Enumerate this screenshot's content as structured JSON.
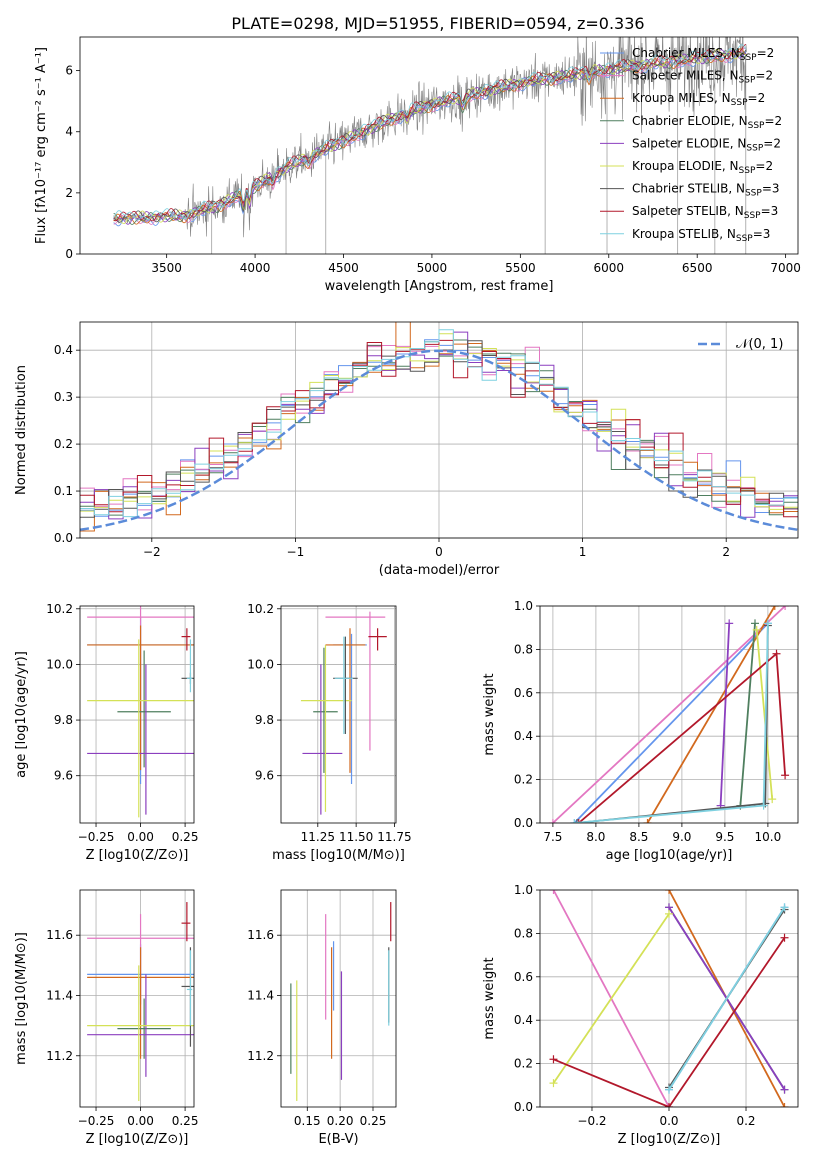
{
  "title": "PLATE=0298, MJD=51955, FIBERID=0594, z=0.336",
  "colors": {
    "chabrier_miles": "#6495ed",
    "salpeter_miles": "#e377c2",
    "kroupa_miles": "#d2691e",
    "chabrier_elodie": "#4f7f5f",
    "salpeter_elodie": "#8b3fbf",
    "kroupa_elodie": "#d4e157",
    "chabrier_stelib": "#555555",
    "salpeter_stelib": "#b2182b",
    "kroupa_stelib": "#7fd1e0",
    "data": "#808080",
    "normal": "#5b8bd9",
    "grid": "#b0b0b0"
  },
  "chart_data": [
    {
      "id": "spectrum",
      "type": "line",
      "xlabel": "wavelength [Angstrom, rest frame]",
      "ylabel": "Flux [fλ10⁻¹⁷ erg cm⁻² s⁻¹ A⁻¹]",
      "xlim": [
        3010,
        7070
      ],
      "ylim": [
        0,
        7.1
      ],
      "xticks": [
        3500,
        4000,
        4500,
        5000,
        5500,
        6000,
        6500,
        7000
      ],
      "yticks": [
        0,
        2,
        4,
        6
      ],
      "grid": false,
      "legend_position": "right",
      "data_range": [
        3200,
        6780
      ],
      "continuum": [
        [
          3200,
          1.15
        ],
        [
          3600,
          1.25
        ],
        [
          3800,
          1.6
        ],
        [
          4000,
          2.2
        ],
        [
          4200,
          2.9
        ],
        [
          4500,
          3.7
        ],
        [
          4800,
          4.5
        ],
        [
          5000,
          4.9
        ],
        [
          5500,
          5.6
        ],
        [
          6000,
          6.05
        ],
        [
          6500,
          6.4
        ],
        [
          6780,
          6.6
        ]
      ],
      "series": [
        {
          "name": "Chabrier MILES, N_SSP=2",
          "label_main": "Chabrier MILES, N",
          "label_sub": "SSP",
          "label_end": "=2",
          "color_key": "chabrier_miles"
        },
        {
          "name": "Salpeter MILES, N_SSP=2",
          "label_main": "Salpeter MILES, N",
          "label_sub": "SSP",
          "label_end": "=2",
          "color_key": "salpeter_miles"
        },
        {
          "name": "Kroupa MILES, N_SSP=2",
          "label_main": "Kroupa MILES, N",
          "label_sub": "SSP",
          "label_end": "=2",
          "color_key": "kroupa_miles"
        },
        {
          "name": "Chabrier ELODIE, N_SSP=2",
          "label_main": "Chabrier ELODIE, N",
          "label_sub": "SSP",
          "label_end": "=2",
          "color_key": "chabrier_elodie"
        },
        {
          "name": "Salpeter ELODIE, N_SSP=2",
          "label_main": "Salpeter ELODIE, N",
          "label_sub": "SSP",
          "label_end": "=2",
          "color_key": "salpeter_elodie"
        },
        {
          "name": "Kroupa ELODIE, N_SSP=2",
          "label_main": "Kroupa ELODIE, N",
          "label_sub": "SSP",
          "label_end": "=2",
          "color_key": "kroupa_elodie"
        },
        {
          "name": "Chabrier STELIB, N_SSP=3",
          "label_main": "Chabrier STELIB, N",
          "label_sub": "SSP",
          "label_end": "=3",
          "color_key": "chabrier_stelib"
        },
        {
          "name": "Salpeter STELIB, N_SSP=3",
          "label_main": "Salpeter STELIB, N",
          "label_sub": "SSP",
          "label_end": "=3",
          "color_key": "salpeter_stelib"
        },
        {
          "name": "Kroupa STELIB, N_SSP=3",
          "label_main": "Kroupa STELIB, N",
          "label_sub": "SSP",
          "label_end": "=3",
          "color_key": "kroupa_stelib"
        }
      ]
    },
    {
      "id": "residuals",
      "type": "histogram",
      "xlabel": "(data-model)/error",
      "ylabel": "Normed distribution",
      "xlim": [
        -2.5,
        2.5
      ],
      "ylim": [
        0,
        0.46
      ],
      "xticks": [
        -2,
        -1,
        0,
        1,
        2
      ],
      "yticks": [
        0.0,
        0.1,
        0.2,
        0.3,
        0.4
      ],
      "grid": true,
      "legend_position": "top-right",
      "legend": "𝒩(0, 1)",
      "bin_width": 0.1
    },
    {
      "id": "age_vs_Z",
      "type": "errorbar",
      "xlabel": "Z [log10(Z/Z⊙)]",
      "ylabel": "age  [log10(age/yr)]",
      "xlim": [
        -0.34,
        0.3
      ],
      "ylim": [
        9.43,
        10.21
      ],
      "xticks": [
        -0.25,
        0.0,
        0.25
      ],
      "yticks": [
        9.6,
        9.8,
        10.0,
        10.2
      ],
      "grid": true,
      "points": [
        {
          "color_key": "chabrier_miles",
          "x": 0.0,
          "xerr": [
            0.3,
            0.3
          ],
          "y": 10.07,
          "yerr": [
            0.5,
            0.1
          ]
        },
        {
          "color_key": "salpeter_miles",
          "x": 0.0,
          "xerr": [
            0.3,
            0.3
          ],
          "y": 10.17,
          "yerr": [
            0.5,
            0.1
          ]
        },
        {
          "color_key": "kroupa_miles",
          "x": 0.0,
          "xerr": [
            0.3,
            0.3
          ],
          "y": 10.07,
          "yerr": [
            0.45,
            0.07
          ]
        },
        {
          "color_key": "chabrier_elodie",
          "x": 0.02,
          "xerr": [
            0.15,
            0.15
          ],
          "y": 9.83,
          "yerr": [
            0.2,
            0.22
          ]
        },
        {
          "color_key": "salpeter_elodie",
          "x": 0.03,
          "xerr": [
            0.33,
            0.27
          ],
          "y": 9.68,
          "yerr": [
            0.22,
            0.32
          ]
        },
        {
          "color_key": "kroupa_elodie",
          "x": -0.01,
          "xerr": [
            0.29,
            0.31
          ],
          "y": 9.87,
          "yerr": [
            0.42,
            0.22
          ]
        },
        {
          "color_key": "chabrier_stelib",
          "x": 0.28,
          "xerr": [
            0.05,
            0.02
          ],
          "y": 9.95,
          "yerr": [
            0.02,
            0.02
          ]
        },
        {
          "color_key": "salpeter_stelib",
          "x": 0.26,
          "xerr": [
            0.03,
            0.02
          ],
          "y": 10.1,
          "yerr": [
            0.05,
            0.03
          ]
        },
        {
          "color_key": "kroupa_stelib",
          "x": 0.28,
          "xerr": [
            0.02,
            0.01
          ],
          "y": 9.95,
          "yerr": [
            0.05,
            0.14
          ]
        }
      ]
    },
    {
      "id": "age_vs_mass",
      "type": "errorbar",
      "xlabel": "mass [log10(M/M⊙)]",
      "ylabel": "",
      "xlim": [
        11.01,
        11.76
      ],
      "ylim": [
        9.43,
        10.21
      ],
      "xticks": [
        11.25,
        11.5,
        11.75
      ],
      "yticks": [
        9.6,
        9.8,
        10.0,
        10.2
      ],
      "grid": true,
      "points": [
        {
          "color_key": "chabrier_miles",
          "x": 11.47,
          "xerr": [
            0.12,
            0.1
          ],
          "y": 10.07,
          "yerr": [
            0.5,
            0.04
          ]
        },
        {
          "color_key": "salpeter_miles",
          "x": 11.59,
          "xerr": [
            0.29,
            0.1
          ],
          "y": 10.17,
          "yerr": [
            0.48,
            0.02
          ]
        },
        {
          "color_key": "kroupa_miles",
          "x": 11.46,
          "xerr": [
            0.16,
            0.1
          ],
          "y": 10.07,
          "yerr": [
            0.46,
            0.06
          ]
        },
        {
          "color_key": "chabrier_elodie",
          "x": 11.29,
          "xerr": [
            0.07,
            0.09
          ],
          "y": 9.83,
          "yerr": [
            0.22,
            0.23
          ]
        },
        {
          "color_key": "salpeter_elodie",
          "x": 11.27,
          "xerr": [
            0.12,
            0.14
          ],
          "y": 9.68,
          "yerr": [
            0.22,
            0.32
          ]
        },
        {
          "color_key": "kroupa_elodie",
          "x": 11.3,
          "xerr": [
            0.16,
            0.17
          ],
          "y": 9.87,
          "yerr": [
            0.4,
            0.2
          ]
        },
        {
          "color_key": "chabrier_stelib",
          "x": 11.43,
          "xerr": [
            0.08,
            0.08
          ],
          "y": 9.95,
          "yerr": [
            0.2,
            0.15
          ]
        },
        {
          "color_key": "salpeter_stelib",
          "x": 11.64,
          "xerr": [
            0.06,
            0.06
          ],
          "y": 10.1,
          "yerr": [
            0.05,
            0.03
          ]
        },
        {
          "color_key": "kroupa_stelib",
          "x": 11.42,
          "xerr": [
            0.06,
            0.06
          ],
          "y": 9.95,
          "yerr": [
            0.2,
            0.15
          ]
        }
      ]
    },
    {
      "id": "massweight_vs_age",
      "type": "line",
      "xlabel": "age  [log10(age/yr)]",
      "ylabel": "mass weight",
      "xlim": [
        7.35,
        10.35
      ],
      "ylim": [
        0,
        1
      ],
      "xticks": [
        7.5,
        8.0,
        8.5,
        9.0,
        9.5,
        10.0
      ],
      "yticks": [
        0.0,
        0.2,
        0.4,
        0.6,
        0.8,
        1.0
      ],
      "grid": true,
      "series": [
        {
          "color_key": "chabrier_miles",
          "points": [
            [
              7.75,
              0.0
            ],
            [
              10.0,
              0.92
            ]
          ]
        },
        {
          "color_key": "salpeter_miles",
          "points": [
            [
              7.5,
              0.0
            ],
            [
              10.2,
              1.0
            ]
          ]
        },
        {
          "color_key": "kroupa_miles",
          "points": [
            [
              8.6,
              0.0
            ],
            [
              10.08,
              1.0
            ]
          ]
        },
        {
          "color_key": "chabrier_elodie",
          "points": [
            [
              9.68,
              0.08
            ],
            [
              9.85,
              0.92
            ]
          ]
        },
        {
          "color_key": "salpeter_elodie",
          "points": [
            [
              9.45,
              0.08
            ],
            [
              9.55,
              0.92
            ]
          ]
        },
        {
          "color_key": "kroupa_elodie",
          "points": [
            [
              9.87,
              0.89
            ],
            [
              10.05,
              0.11
            ]
          ]
        },
        {
          "color_key": "chabrier_stelib",
          "points": [
            [
              7.78,
              0.0
            ],
            [
              9.97,
              0.09
            ],
            [
              10.0,
              0.91
            ]
          ]
        },
        {
          "color_key": "salpeter_stelib",
          "points": [
            [
              7.8,
              0.0
            ],
            [
              10.1,
              0.78
            ],
            [
              10.2,
              0.22
            ]
          ]
        },
        {
          "color_key": "kroupa_stelib",
          "points": [
            [
              7.75,
              0.0
            ],
            [
              9.95,
              0.08
            ],
            [
              10.0,
              0.92
            ]
          ]
        }
      ]
    },
    {
      "id": "mass_vs_Z",
      "type": "errorbar",
      "xlabel": "Z [log10(Z/Z⊙)]",
      "ylabel": "mass [log10(M/M⊙)]",
      "xlim": [
        -0.34,
        0.3
      ],
      "ylim": [
        11.03,
        11.75
      ],
      "xticks": [
        -0.25,
        0.0,
        0.25
      ],
      "yticks": [
        11.2,
        11.4,
        11.6
      ],
      "grid": true,
      "points": [
        {
          "color_key": "chabrier_miles",
          "x": 0.0,
          "xerr": [
            0.3,
            0.3
          ],
          "y": 11.47,
          "yerr": [
            0.1,
            0.1
          ]
        },
        {
          "color_key": "salpeter_miles",
          "x": 0.0,
          "xerr": [
            0.3,
            0.3
          ],
          "y": 11.59,
          "yerr": [
            0.28,
            0.08
          ]
        },
        {
          "color_key": "kroupa_miles",
          "x": 0.0,
          "xerr": [
            0.3,
            0.3
          ],
          "y": 11.46,
          "yerr": [
            0.27,
            0.1
          ]
        },
        {
          "color_key": "chabrier_elodie",
          "x": 0.02,
          "xerr": [
            0.15,
            0.15
          ],
          "y": 11.29,
          "yerr": [
            0.1,
            0.1
          ]
        },
        {
          "color_key": "salpeter_elodie",
          "x": 0.03,
          "xerr": [
            0.33,
            0.27
          ],
          "y": 11.27,
          "yerr": [
            0.14,
            0.2
          ]
        },
        {
          "color_key": "kroupa_elodie",
          "x": -0.01,
          "xerr": [
            0.29,
            0.31
          ],
          "y": 11.3,
          "yerr": [
            0.25,
            0.2
          ]
        },
        {
          "color_key": "chabrier_stelib",
          "x": 0.28,
          "xerr": [
            0.05,
            0.02
          ],
          "y": 11.43,
          "yerr": [
            0.2,
            0.13
          ]
        },
        {
          "color_key": "salpeter_stelib",
          "x": 0.26,
          "xerr": [
            0.03,
            0.02
          ],
          "y": 11.64,
          "yerr": [
            0.06,
            0.07
          ]
        },
        {
          "color_key": "kroupa_stelib",
          "x": 0.28,
          "xerr": [
            0.02,
            0.01
          ],
          "y": 11.42,
          "yerr": [
            0.12,
            0.13
          ]
        }
      ]
    },
    {
      "id": "mass_vs_ebv",
      "type": "errorbar",
      "xlabel": "E(B-V)",
      "ylabel": "",
      "xlim": [
        0.11,
        0.285
      ],
      "ylim": [
        11.03,
        11.75
      ],
      "xticks": [
        0.15,
        0.2,
        0.25
      ],
      "yticks": [
        11.2,
        11.4,
        11.6
      ],
      "grid": true,
      "points": [
        {
          "color_key": "chabrier_miles",
          "x": 0.19,
          "xerr": [
            0,
            0
          ],
          "y": 11.47,
          "yerr": [
            0.12,
            0.11
          ]
        },
        {
          "color_key": "salpeter_miles",
          "x": 0.178,
          "xerr": [
            0,
            0
          ],
          "y": 11.59,
          "yerr": [
            0.27,
            0.08
          ]
        },
        {
          "color_key": "kroupa_miles",
          "x": 0.187,
          "xerr": [
            0,
            0
          ],
          "y": 11.46,
          "yerr": [
            0.27,
            0.1
          ]
        },
        {
          "color_key": "chabrier_elodie",
          "x": 0.125,
          "xerr": [
            0,
            0
          ],
          "y": 11.29,
          "yerr": [
            0.15,
            0.15
          ]
        },
        {
          "color_key": "salpeter_elodie",
          "x": 0.202,
          "xerr": [
            0,
            0
          ],
          "y": 11.27,
          "yerr": [
            0.15,
            0.21
          ]
        },
        {
          "color_key": "kroupa_elodie",
          "x": 0.134,
          "xerr": [
            0,
            0
          ],
          "y": 11.3,
          "yerr": [
            0.25,
            0.15
          ]
        },
        {
          "color_key": "chabrier_stelib",
          "x": 0.274,
          "xerr": [
            0,
            0
          ],
          "y": 11.43,
          "yerr": [
            0.12,
            0.13
          ]
        },
        {
          "color_key": "salpeter_stelib",
          "x": 0.277,
          "xerr": [
            0,
            0
          ],
          "y": 11.64,
          "yerr": [
            0.06,
            0.07
          ]
        },
        {
          "color_key": "kroupa_stelib",
          "x": 0.274,
          "xerr": [
            0,
            0
          ],
          "y": 11.42,
          "yerr": [
            0.12,
            0.13
          ]
        }
      ]
    },
    {
      "id": "massweight_vs_Z",
      "type": "line",
      "xlabel": "Z [log10(Z/Z⊙)]",
      "ylabel": "mass weight",
      "xlim": [
        -0.335,
        0.335
      ],
      "ylim": [
        0,
        1
      ],
      "xticks": [
        -0.2,
        0.0,
        0.2
      ],
      "yticks": [
        0.0,
        0.2,
        0.4,
        0.6,
        0.8,
        1.0
      ],
      "grid": true,
      "series": [
        {
          "color_key": "chabrier_miles",
          "points": [
            [
              0.0,
              0.08
            ],
            [
              0.3,
              0.92
            ]
          ]
        },
        {
          "color_key": "salpeter_miles",
          "points": [
            [
              -0.3,
              1.0
            ],
            [
              0.0,
              0.0
            ]
          ]
        },
        {
          "color_key": "kroupa_miles",
          "points": [
            [
              0.0,
              1.0
            ],
            [
              0.3,
              0.0
            ]
          ]
        },
        {
          "color_key": "chabrier_elodie",
          "points": [
            [
              0.0,
              0.92
            ],
            [
              0.3,
              0.08
            ]
          ]
        },
        {
          "color_key": "salpeter_elodie",
          "points": [
            [
              0.0,
              0.92
            ],
            [
              0.3,
              0.08
            ]
          ]
        },
        {
          "color_key": "kroupa_elodie",
          "points": [
            [
              -0.3,
              0.11
            ],
            [
              0.0,
              0.89
            ]
          ]
        },
        {
          "color_key": "chabrier_stelib",
          "points": [
            [
              0.0,
              0.09
            ],
            [
              0.3,
              0.91
            ]
          ]
        },
        {
          "color_key": "salpeter_stelib",
          "points": [
            [
              -0.3,
              0.22
            ],
            [
              0.0,
              0.0
            ],
            [
              0.3,
              0.78
            ]
          ]
        },
        {
          "color_key": "kroupa_stelib",
          "points": [
            [
              0.0,
              0.08
            ],
            [
              0.3,
              0.92
            ]
          ]
        }
      ]
    }
  ]
}
